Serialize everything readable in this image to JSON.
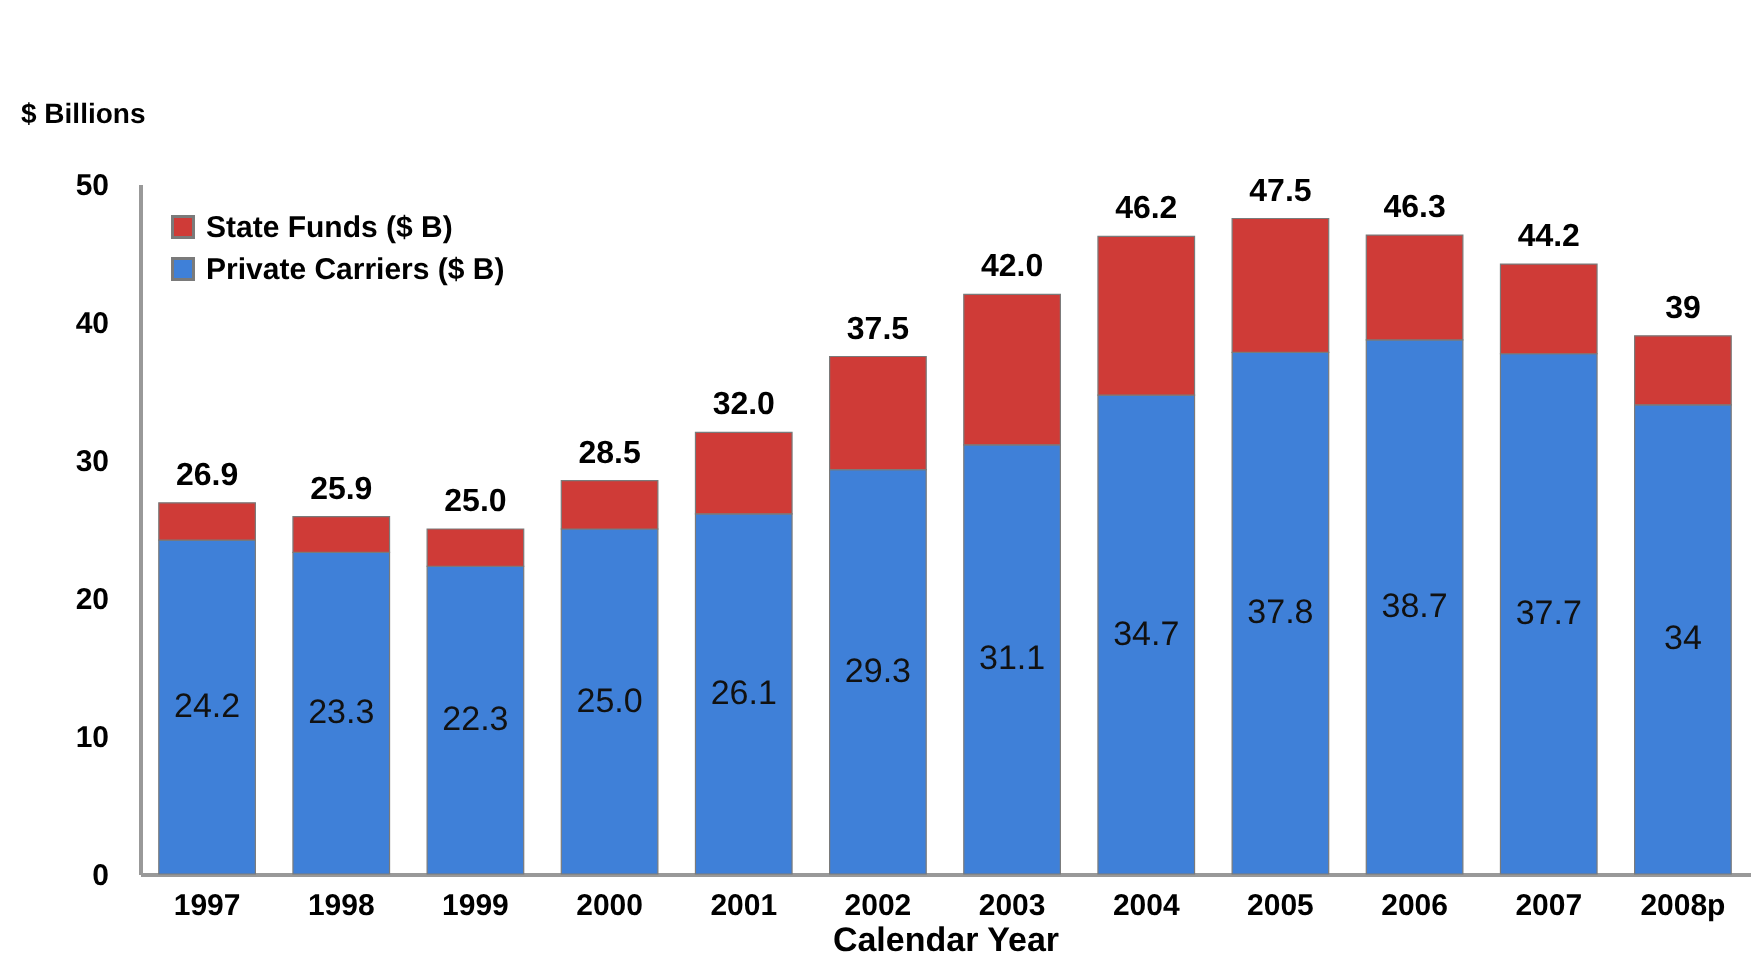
{
  "chart_data": {
    "type": "bar",
    "stacked": true,
    "ylabel": "$ Billions",
    "xlabel": "Calendar Year",
    "categories": [
      "1997",
      "1998",
      "1999",
      "2000",
      "2001",
      "2002",
      "2003",
      "2004",
      "2005",
      "2006",
      "2007",
      "2008p"
    ],
    "series": [
      {
        "name": "Private Carriers ($ B)",
        "color": "#3f80d8",
        "values": [
          24.2,
          23.3,
          22.3,
          25.0,
          26.1,
          29.3,
          31.1,
          34.7,
          37.8,
          38.7,
          37.7,
          34
        ],
        "value_labels": [
          "24.2",
          "23.3",
          "22.3",
          "25.0",
          "26.1",
          "29.3",
          "31.1",
          "34.7",
          "37.8",
          "38.7",
          "37.7",
          "34"
        ]
      },
      {
        "name": "State Funds ($ B)",
        "color": "#cf3b37",
        "values": [
          2.7,
          2.6,
          2.7,
          3.5,
          5.9,
          8.2,
          10.9,
          11.5,
          9.7,
          7.6,
          6.5,
          5
        ]
      }
    ],
    "totals": [
      "26.9",
      "25.9",
      "25.0",
      "28.5",
      "32.0",
      "37.5",
      "42.0",
      "46.2",
      "47.5",
      "46.3",
      "44.2",
      "39"
    ],
    "ylim": [
      0,
      50
    ],
    "yticks": [
      0,
      10,
      20,
      30,
      40,
      50
    ],
    "grid": false,
    "legend": "top left"
  }
}
